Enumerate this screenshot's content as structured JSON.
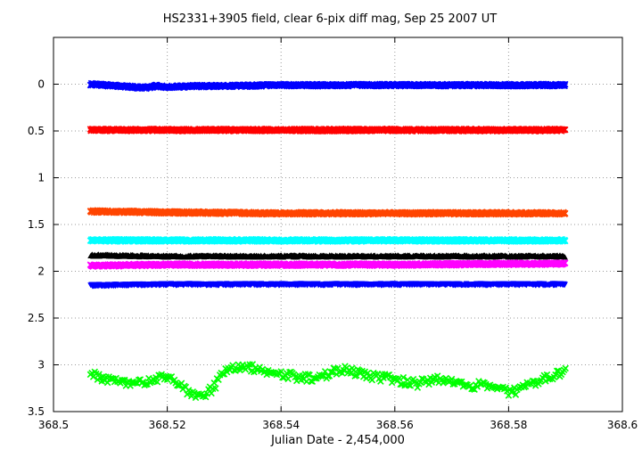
{
  "chart_data": {
    "type": "scatter",
    "title": "HS2331+3905 field, clear 6-pix diff mag, Sep 25 2007 UT",
    "xlabel": "Julian Date - 2,454,000",
    "ylabel": "",
    "xlim": [
      368.5,
      368.6
    ],
    "ylim": [
      3.5,
      -0.5
    ],
    "y_inverted": true,
    "grid": true,
    "legend": "none",
    "x_ticks": [
      {
        "value": 368.5,
        "label": "368.5"
      },
      {
        "value": 368.52,
        "label": "368.52"
      },
      {
        "value": 368.54,
        "label": "368.54"
      },
      {
        "value": 368.56,
        "label": "368.56"
      },
      {
        "value": 368.58,
        "label": "368.58"
      },
      {
        "value": 368.6,
        "label": "368.6"
      }
    ],
    "y_ticks": [
      {
        "value": 0,
        "label": "0"
      },
      {
        "value": 0.5,
        "label": "0.5"
      },
      {
        "value": 1,
        "label": "1"
      },
      {
        "value": 1.5,
        "label": "1.5"
      },
      {
        "value": 2,
        "label": "2"
      },
      {
        "value": 2.5,
        "label": "2.5"
      },
      {
        "value": 3,
        "label": "3"
      },
      {
        "value": 3.5,
        "label": "3.5"
      }
    ],
    "series": [
      {
        "color": "#0000ff",
        "marker": "x",
        "x": [
          368.5065,
          368.509,
          368.512,
          368.514,
          368.516,
          368.518,
          368.52,
          368.525,
          368.53,
          368.54,
          368.55,
          368.56,
          368.57,
          368.58,
          368.59
        ],
        "y": [
          0.0,
          0.01,
          0.02,
          0.03,
          0.04,
          0.02,
          0.03,
          0.02,
          0.02,
          0.01,
          0.01,
          0.01,
          0.01,
          0.01,
          0.01
        ]
      },
      {
        "color": "#ff0000",
        "marker": "x",
        "x": [
          368.5065,
          368.52,
          368.54,
          368.56,
          368.58,
          368.59
        ],
        "y": [
          0.49,
          0.49,
          0.49,
          0.49,
          0.49,
          0.49
        ]
      },
      {
        "color": "#ff4500",
        "marker": "x",
        "x": [
          368.5065,
          368.52,
          368.54,
          368.56,
          368.58,
          368.59
        ],
        "y": [
          1.36,
          1.37,
          1.38,
          1.38,
          1.38,
          1.38
        ]
      },
      {
        "color": "#00ffff",
        "marker": "x",
        "x": [
          368.5065,
          368.52,
          368.54,
          368.56,
          368.58,
          368.59
        ],
        "y": [
          1.67,
          1.67,
          1.67,
          1.67,
          1.67,
          1.67
        ]
      },
      {
        "color": "#000000",
        "marker": "triangle",
        "x": [
          368.5065,
          368.52,
          368.54,
          368.56,
          368.58,
          368.59
        ],
        "y": [
          1.83,
          1.84,
          1.84,
          1.84,
          1.84,
          1.84
        ]
      },
      {
        "color": "#ff00ff",
        "marker": "x",
        "x": [
          368.5065,
          368.52,
          368.54,
          368.56,
          368.58,
          368.59
        ],
        "y": [
          1.94,
          1.93,
          1.93,
          1.93,
          1.92,
          1.92
        ]
      },
      {
        "color": "#0000ff",
        "marker": "triangle-down",
        "x": [
          368.5065,
          368.52,
          368.54,
          368.56,
          368.58,
          368.59
        ],
        "y": [
          2.15,
          2.14,
          2.14,
          2.14,
          2.14,
          2.14
        ]
      },
      {
        "color": "#00ff00",
        "marker": "x",
        "x": [
          368.5065,
          368.508,
          368.51,
          368.512,
          368.514,
          368.516,
          368.518,
          368.52,
          368.522,
          368.524,
          368.526,
          368.528,
          368.53,
          368.532,
          368.534,
          368.536,
          368.538,
          368.54,
          368.542,
          368.544,
          368.546,
          368.548,
          368.55,
          368.552,
          368.554,
          368.556,
          368.558,
          368.56,
          368.562,
          368.564,
          368.566,
          368.568,
          368.57,
          368.572,
          368.574,
          368.576,
          368.578,
          368.58,
          368.582,
          368.584,
          368.586,
          368.588,
          368.59
        ],
        "y": [
          3.1,
          3.13,
          3.16,
          3.2,
          3.22,
          3.18,
          3.15,
          3.12,
          3.22,
          3.3,
          3.35,
          3.25,
          3.08,
          3.03,
          3.02,
          3.05,
          3.08,
          3.1,
          3.12,
          3.14,
          3.15,
          3.1,
          3.05,
          3.06,
          3.1,
          3.12,
          3.14,
          3.15,
          3.18,
          3.2,
          3.17,
          3.15,
          3.18,
          3.2,
          3.22,
          3.21,
          3.25,
          3.3,
          3.26,
          3.2,
          3.16,
          3.12,
          3.08
        ]
      }
    ]
  }
}
